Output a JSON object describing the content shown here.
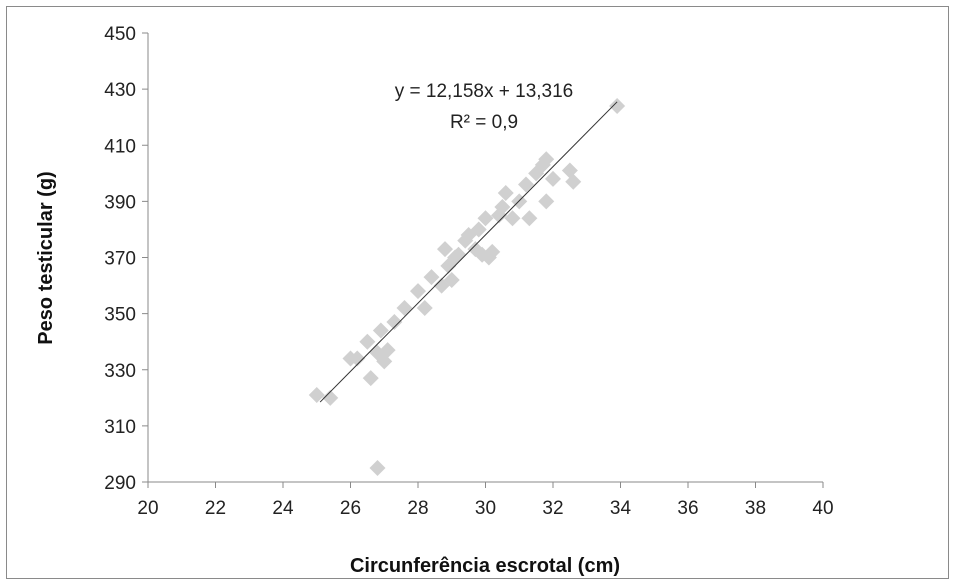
{
  "chart_data": {
    "type": "scatter",
    "xlabel": "Circunferência escrotal (cm)",
    "ylabel": "Peso testicular (g)",
    "xlim": [
      20,
      40
    ],
    "ylim": [
      290,
      450
    ],
    "xticks": [
      "20",
      "22",
      "24",
      "26",
      "28",
      "30",
      "32",
      "34",
      "36",
      "38",
      "40"
    ],
    "yticks": [
      "290",
      "310",
      "330",
      "350",
      "370",
      "390",
      "410",
      "430",
      "450"
    ],
    "grid": false,
    "legend": "none",
    "marker_color": "#d0d0d0",
    "trendline_color": "#333333",
    "trendline": {
      "equation": "y = 12,158x + 13,316",
      "r2": "R² = 0,9",
      "slope": 12.158,
      "intercept": 13.316,
      "x_range": [
        25.1,
        33.9
      ]
    },
    "points": [
      {
        "x": 25.0,
        "y": 321
      },
      {
        "x": 25.4,
        "y": 320
      },
      {
        "x": 26.0,
        "y": 334
      },
      {
        "x": 26.2,
        "y": 334
      },
      {
        "x": 26.5,
        "y": 340
      },
      {
        "x": 26.6,
        "y": 327
      },
      {
        "x": 26.8,
        "y": 336
      },
      {
        "x": 26.9,
        "y": 344
      },
      {
        "x": 27.0,
        "y": 333
      },
      {
        "x": 27.1,
        "y": 337
      },
      {
        "x": 27.3,
        "y": 347
      },
      {
        "x": 27.6,
        "y": 352
      },
      {
        "x": 28.0,
        "y": 358
      },
      {
        "x": 28.2,
        "y": 352
      },
      {
        "x": 28.4,
        "y": 363
      },
      {
        "x": 28.7,
        "y": 360
      },
      {
        "x": 28.8,
        "y": 373
      },
      {
        "x": 28.9,
        "y": 367
      },
      {
        "x": 29.0,
        "y": 362
      },
      {
        "x": 29.1,
        "y": 370
      },
      {
        "x": 29.2,
        "y": 371
      },
      {
        "x": 29.4,
        "y": 376
      },
      {
        "x": 29.5,
        "y": 378
      },
      {
        "x": 29.7,
        "y": 373
      },
      {
        "x": 29.8,
        "y": 380
      },
      {
        "x": 29.9,
        "y": 371
      },
      {
        "x": 30.0,
        "y": 384
      },
      {
        "x": 30.1,
        "y": 370
      },
      {
        "x": 30.2,
        "y": 372
      },
      {
        "x": 30.4,
        "y": 385
      },
      {
        "x": 30.5,
        "y": 388
      },
      {
        "x": 30.6,
        "y": 393
      },
      {
        "x": 30.8,
        "y": 384
      },
      {
        "x": 31.0,
        "y": 390
      },
      {
        "x": 31.2,
        "y": 396
      },
      {
        "x": 31.3,
        "y": 384
      },
      {
        "x": 31.5,
        "y": 400
      },
      {
        "x": 31.7,
        "y": 403
      },
      {
        "x": 31.8,
        "y": 405
      },
      {
        "x": 31.8,
        "y": 390
      },
      {
        "x": 32.0,
        "y": 398
      },
      {
        "x": 32.5,
        "y": 401
      },
      {
        "x": 32.6,
        "y": 397
      },
      {
        "x": 33.9,
        "y": 424
      },
      {
        "x": 26.8,
        "y": 295
      }
    ]
  }
}
